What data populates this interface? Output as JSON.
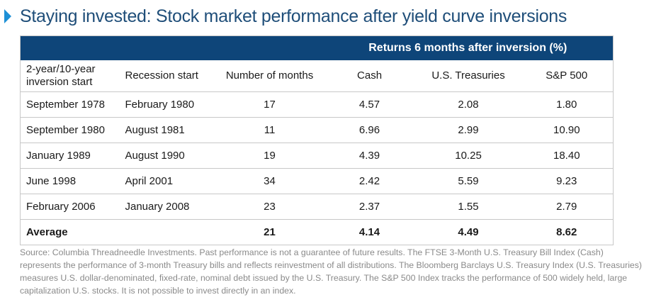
{
  "title": "Staying invested: Stock market performance after yield curve inversions",
  "colors": {
    "title": "#1f4e79",
    "accent_arrow": "#1e90d6",
    "header_band": "#0e4579",
    "grid": "#c8c8c8",
    "note": "#8a8a8a"
  },
  "chart_data": {
    "type": "table",
    "group_header": "Returns 6 months after inversion (%)",
    "columns": [
      "2-year/10-year inversion start",
      "Recession start",
      "Number of months",
      "Cash",
      "U.S. Treasuries",
      "S&P 500"
    ],
    "rows": [
      [
        "September 1978",
        "February 1980",
        "17",
        "4.57",
        "2.08",
        "1.80"
      ],
      [
        "September 1980",
        "August 1981",
        "11",
        "6.96",
        "2.99",
        "10.90"
      ],
      [
        "January 1989",
        "August 1990",
        "19",
        "4.39",
        "10.25",
        "18.40"
      ],
      [
        "June 1998",
        "April 2001",
        "34",
        "2.42",
        "5.59",
        "9.23"
      ],
      [
        "February 2006",
        "January 2008",
        "23",
        "2.37",
        "1.55",
        "2.79"
      ]
    ],
    "average": [
      "Average",
      "",
      "21",
      "4.14",
      "4.49",
      "8.62"
    ]
  },
  "source_note": "Source: Columbia Threadneedle Investments. Past performance is not a guarantee of future results. The FTSE 3-Month U.S. Treasury Bill Index (Cash) represents the performance of 3-month Treasury bills and reflects reinvestment of all distributions. The Bloomberg Barclays U.S. Treasury Index (U.S. Treasuries) measures U.S. dollar-denominated, fixed-rate, nominal debt issued by the U.S. Treasury. The S&P 500 Index tracks the performance of 500 widely held, large capitalization U.S. stocks. It is not possible to invest directly in an index."
}
